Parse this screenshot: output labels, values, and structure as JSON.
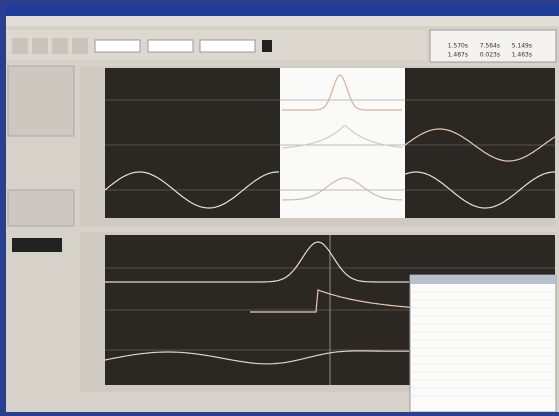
{
  "cursor_box": {
    "rows": [
      [
        "1.570s",
        "7.564s",
        "5.149s"
      ],
      [
        "1.487s",
        "0.023s",
        "1.463s"
      ]
    ]
  }
}
